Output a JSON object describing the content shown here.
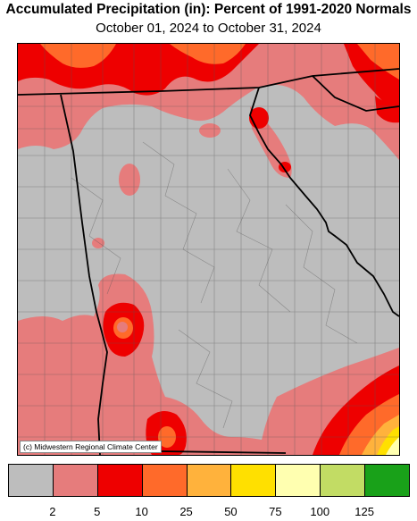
{
  "title": "Accumulated Precipitation (in): Percent of 1991-2020 Normals",
  "subtitle": "October 01, 2024 to October 31, 2024",
  "credit": "(c) Midwestern Regional Climate Center",
  "legend": {
    "colors": [
      "#bdbdbd",
      "#e67c7c",
      "#ee0000",
      "#ff6a2a",
      "#ffb23c",
      "#ffe000",
      "#ffffb0",
      "#c2dc64",
      "#19a119"
    ],
    "ticks": [
      "2",
      "5",
      "10",
      "25",
      "50",
      "75",
      "100",
      "125"
    ]
  }
}
